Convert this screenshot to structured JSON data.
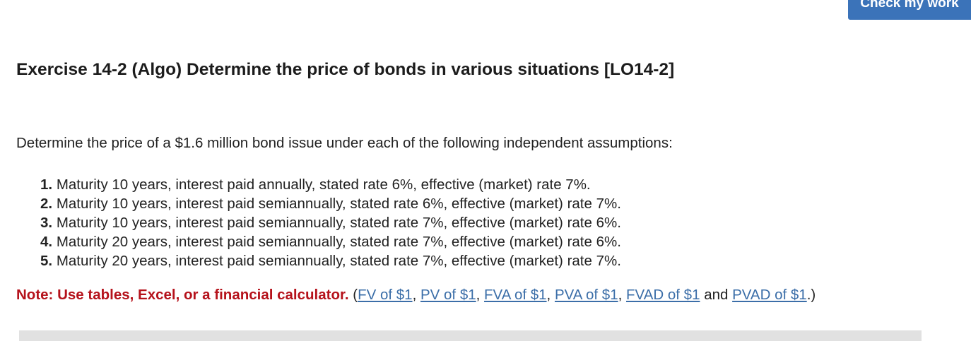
{
  "button": "Check my work",
  "title": "Exercise 14-2 (Algo) Determine the price of bonds in various situations [LO14-2]",
  "intro": "Determine the price of a $1.6 million bond issue under each of the following independent assumptions:",
  "items": [
    {
      "number": "1.",
      "text": "Maturity 10 years, interest paid annually, stated rate 6%, effective (market) rate 7%."
    },
    {
      "number": "2.",
      "text": "Maturity 10 years, interest paid semiannually, stated rate 6%, effective (market) rate 7%."
    },
    {
      "number": "3.",
      "text": "Maturity 10 years, interest paid semiannually, stated rate 7%, effective (market) rate 6%."
    },
    {
      "number": "4.",
      "text": "Maturity 20 years, interest paid semiannually, stated rate 7%, effective (market) rate 6%."
    },
    {
      "number": "5.",
      "text": "Maturity 20 years, interest paid semiannually, stated rate 7%, effective (market) rate 7%."
    }
  ],
  "note": {
    "label": "Note: Use tables, Excel, or a financial calculator.",
    "open": "(",
    "links": [
      "FV of $1",
      "PV of $1",
      "FVA of $1",
      "PVA of $1",
      "FVAD of $1",
      "PVAD of $1"
    ],
    "separator": ",",
    "conjunction": "and",
    "close": ".)"
  }
}
